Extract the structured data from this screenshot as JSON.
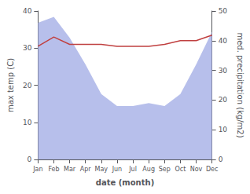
{
  "chart_data": {
    "type": "line",
    "xlabel": "date (month)",
    "ylabel": "max temp (C)",
    "y2label": "med. precipitation (kg/m2)",
    "categories": [
      "Jan",
      "Feb",
      "Mar",
      "Apr",
      "May",
      "Jun",
      "Jul",
      "Aug",
      "Sep",
      "Oct",
      "Nov",
      "Dec"
    ],
    "series": [
      {
        "type": "area",
        "axis": "y2",
        "color": "#aab4e8",
        "values": [
          46,
          48,
          41,
          32,
          22,
          18,
          18,
          19,
          18,
          22,
          32,
          43
        ]
      },
      {
        "type": "line",
        "color": "#c04040",
        "values": [
          30.5,
          33.0,
          31.0,
          31.0,
          31.0,
          30.5,
          30.5,
          30.5,
          31.0,
          32.0,
          32.0,
          33.5
        ]
      }
    ],
    "ylim": [
      0,
      40
    ],
    "yticks": [
      0,
      10,
      20,
      30,
      40
    ],
    "y2lim": [
      0,
      50
    ],
    "y2ticks": [
      0,
      10,
      20,
      30,
      40,
      50
    ],
    "grid": false
  }
}
